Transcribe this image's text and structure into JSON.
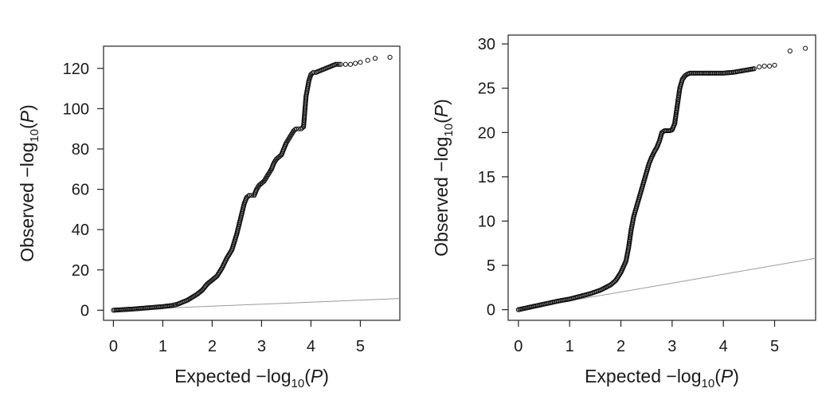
{
  "chart_data": [
    {
      "type": "scatter",
      "title": "",
      "xlabel": {
        "main": "Expected −log",
        "sub": "10",
        "paren_open": "(",
        "var": "P",
        "paren_close": ")"
      },
      "ylabel": {
        "main": "Observed −log",
        "sub": "10",
        "paren_open": "(",
        "var": "P",
        "paren_close": ")"
      },
      "xlim": [
        -0.2,
        5.8
      ],
      "ylim": [
        -5,
        131
      ],
      "xticks": [
        "0",
        "1",
        "2",
        "3",
        "4",
        "5"
      ],
      "yticks": [
        "0",
        "20",
        "40",
        "60",
        "80",
        "100",
        "120"
      ],
      "grid": false,
      "reference_line": {
        "x": [
          0,
          5.8
        ],
        "y": [
          0,
          5.8
        ]
      },
      "series": [
        {
          "x": [
            0,
            0.2,
            0.4,
            0.6,
            0.8,
            1.0,
            1.2,
            1.3,
            1.4,
            1.5,
            1.6,
            1.7,
            1.8,
            1.9,
            2.0,
            2.1,
            2.2,
            2.3,
            2.4,
            2.5,
            2.55,
            2.6,
            2.65,
            2.7,
            2.75,
            2.8,
            2.85,
            2.9,
            2.95,
            3.0,
            3.05,
            3.1,
            3.15,
            3.2,
            3.25,
            3.3,
            3.35,
            3.4,
            3.45,
            3.5,
            3.55,
            3.6,
            3.65,
            3.7,
            3.75,
            3.8,
            3.85,
            3.88,
            3.9,
            3.93,
            3.96,
            4.0,
            4.05,
            4.1,
            4.15,
            4.2,
            4.3,
            4.4,
            4.5,
            4.6,
            4.7,
            4.8,
            4.9,
            5.0,
            5.15,
            5.3,
            5.6
          ],
          "y": [
            0,
            0.3,
            0.6,
            1.0,
            1.4,
            1.8,
            2.4,
            3.0,
            4.0,
            5.0,
            6.5,
            8.0,
            10.0,
            13.0,
            15.0,
            17.0,
            21.0,
            26.0,
            30.0,
            38.0,
            43.0,
            48.0,
            53.0,
            56.0,
            57.0,
            57.0,
            57.0,
            60.0,
            62.0,
            63.0,
            64.0,
            66.0,
            68.0,
            70.0,
            73.0,
            75.0,
            76.0,
            77.0,
            80.0,
            83.0,
            85.0,
            87.0,
            89.0,
            90.0,
            90.0,
            90.0,
            91.0,
            100.0,
            106.0,
            110.0,
            114.0,
            117.0,
            118.0,
            118.0,
            118.5,
            119.0,
            120.0,
            121.0,
            122.0,
            122.0,
            122.0,
            122.0,
            122.5,
            123.0,
            124.0,
            125.0,
            125.5
          ]
        }
      ]
    },
    {
      "type": "scatter",
      "title": "",
      "xlabel": {
        "main": "Expected −log",
        "sub": "10",
        "paren_open": "(",
        "var": "P",
        "paren_close": ")"
      },
      "ylabel": {
        "main": "Observed −log",
        "sub": "10",
        "paren_open": "(",
        "var": "P",
        "paren_close": ")"
      },
      "xlim": [
        -0.2,
        5.8
      ],
      "ylim": [
        -1.2,
        31.0
      ],
      "xticks": [
        "0",
        "1",
        "2",
        "3",
        "4",
        "5"
      ],
      "yticks": [
        "0",
        "5",
        "10",
        "15",
        "20",
        "25",
        "30"
      ],
      "grid": false,
      "reference_line": {
        "x": [
          0,
          5.8
        ],
        "y": [
          0,
          5.8
        ]
      },
      "series": [
        {
          "x": [
            0,
            0.2,
            0.4,
            0.6,
            0.8,
            1.0,
            1.2,
            1.4,
            1.6,
            1.8,
            1.9,
            2.0,
            2.1,
            2.15,
            2.2,
            2.25,
            2.3,
            2.35,
            2.4,
            2.45,
            2.5,
            2.55,
            2.6,
            2.65,
            2.7,
            2.75,
            2.8,
            2.85,
            2.9,
            2.95,
            3.0,
            3.05,
            3.1,
            3.15,
            3.2,
            3.25,
            3.3,
            3.35,
            3.4,
            3.5,
            3.6,
            3.8,
            4.0,
            4.2,
            4.4,
            4.5,
            4.6,
            4.7,
            4.8,
            4.9,
            5.0,
            5.3,
            5.6
          ],
          "y": [
            0,
            0.25,
            0.5,
            0.75,
            1.0,
            1.2,
            1.5,
            1.8,
            2.2,
            2.8,
            3.3,
            4.2,
            5.5,
            7.0,
            9.0,
            10.5,
            11.5,
            12.5,
            13.5,
            14.5,
            15.5,
            16.5,
            17.2,
            17.8,
            18.3,
            19.0,
            20.0,
            20.2,
            20.2,
            20.2,
            20.3,
            21.0,
            23.0,
            25.0,
            26.0,
            26.4,
            26.6,
            26.7,
            26.7,
            26.7,
            26.7,
            26.7,
            26.7,
            26.8,
            27.0,
            27.1,
            27.2,
            27.4,
            27.5,
            27.5,
            27.6,
            29.2,
            29.5
          ]
        }
      ]
    }
  ]
}
